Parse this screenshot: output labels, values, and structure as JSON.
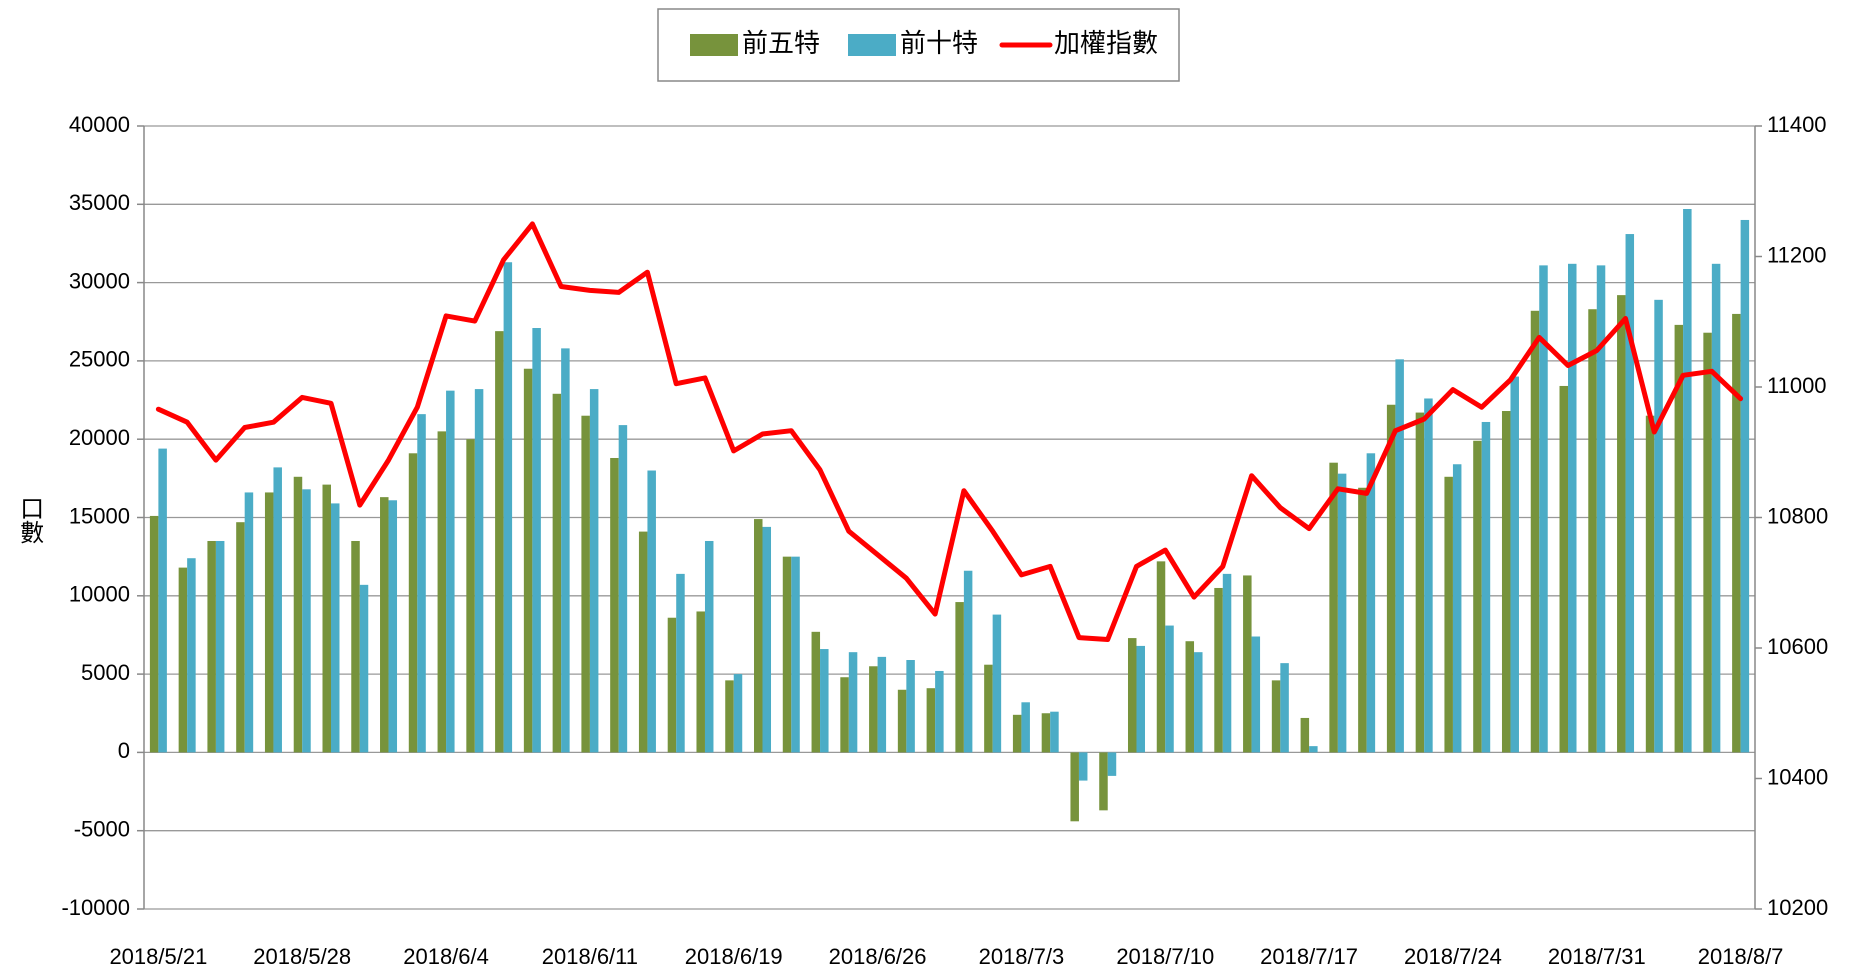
{
  "chart_data": {
    "type": "bar",
    "ylabel": "口數",
    "categories": [
      "2018/5/21",
      null,
      null,
      null,
      null,
      "2018/5/28",
      null,
      null,
      null,
      null,
      "2018/6/4",
      null,
      null,
      null,
      null,
      "2018/6/11",
      null,
      null,
      null,
      null,
      "2018/6/19",
      null,
      null,
      null,
      null,
      "2018/6/26",
      null,
      null,
      null,
      null,
      "2018/7/3",
      null,
      null,
      null,
      null,
      "2018/7/10",
      null,
      null,
      null,
      null,
      "2018/7/17",
      null,
      null,
      null,
      null,
      "2018/7/24",
      null,
      null,
      null,
      null,
      "2018/7/31",
      null,
      null,
      null,
      null,
      "2018/8/7"
    ],
    "series": [
      {
        "name": "前五特",
        "color": "#77933c",
        "values": [
          15100,
          11800,
          13500,
          14700,
          16600,
          17600,
          17100,
          13500,
          16300,
          19100,
          20500,
          20000,
          26900,
          24500,
          22900,
          21500,
          18800,
          14100,
          8600,
          9000,
          4600,
          14900,
          12500,
          7700,
          4800,
          5500,
          4000,
          4100,
          9600,
          5600,
          2400,
          2500,
          -4400,
          -3700,
          7300,
          12200,
          7100,
          10500,
          11300,
          4600,
          2200,
          18500,
          16900,
          22200,
          21700,
          17600,
          19900,
          21800,
          28200,
          23400,
          28300,
          29200,
          21500,
          27300,
          26800,
          28000
        ]
      },
      {
        "name": "前十特",
        "color": "#4bacc6",
        "values": [
          19400,
          12400,
          13500,
          16600,
          18200,
          16800,
          15900,
          10700,
          16100,
          21600,
          23100,
          23200,
          31300,
          27100,
          25800,
          23200,
          20900,
          18000,
          11400,
          13500,
          5000,
          14400,
          12500,
          6600,
          6400,
          6100,
          5900,
          5200,
          11600,
          8800,
          3200,
          2600,
          -1800,
          -1500,
          6800,
          8100,
          6400,
          11400,
          7400,
          5700,
          400,
          17800,
          19100,
          25100,
          22600,
          18400,
          21100,
          24000,
          31100,
          31200,
          31100,
          33100,
          28900,
          34700,
          31200,
          34000
        ]
      },
      {
        "name": "加權指數",
        "color": "#ff0000",
        "type": "line",
        "axis": "y2",
        "values": [
          10966,
          10946,
          10888,
          10938,
          10946,
          10984,
          10975,
          10819,
          10888,
          10969,
          11109,
          11101,
          11195,
          11250,
          11154,
          11148,
          11145,
          11176,
          11005,
          11014,
          10902,
          10928,
          10933,
          10873,
          10779,
          10743,
          10707,
          10652,
          10841,
          10779,
          10712,
          10725,
          10616,
          10613,
          10725,
          10750,
          10678,
          10725,
          10864,
          10815,
          10783,
          10844,
          10837,
          10933,
          10951,
          10996,
          10969,
          11011,
          11076,
          11033,
          11056,
          11105,
          10931,
          11018,
          11024,
          10982
        ]
      }
    ],
    "ylim": [
      -10000,
      40000
    ],
    "yticks": [
      -10000,
      -5000,
      0,
      5000,
      10000,
      15000,
      20000,
      25000,
      30000,
      35000,
      40000
    ],
    "y2lim": [
      10200,
      11400
    ],
    "y2ticks": [
      10200,
      10400,
      10600,
      10800,
      11000,
      11200,
      11400
    ],
    "grid": true,
    "legend": "top"
  }
}
